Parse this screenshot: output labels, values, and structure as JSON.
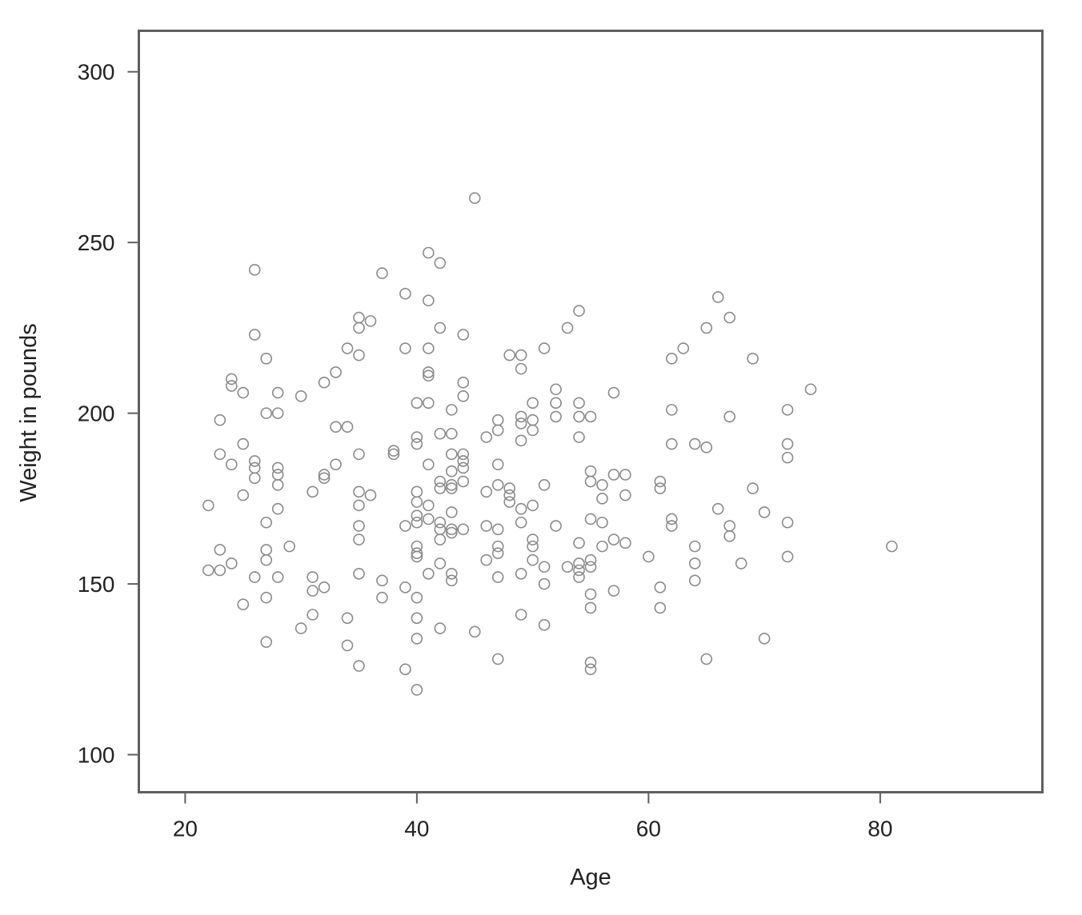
{
  "chart_data": {
    "type": "scatter",
    "xlabel": "Age",
    "ylabel": "Weight in pounds",
    "xlim": [
      16,
      94
    ],
    "ylim": [
      89,
      312
    ],
    "xticks": [
      20,
      40,
      60,
      80
    ],
    "yticks": [
      100,
      150,
      200,
      250,
      300
    ],
    "grid": false,
    "marker": "open-circle",
    "colors": {
      "marker": "#8a8a8a",
      "frame": "#5f5f62",
      "text": "#222222"
    },
    "points": [
      [
        22,
        173
      ],
      [
        22,
        154
      ],
      [
        23,
        198
      ],
      [
        23,
        188
      ],
      [
        23,
        160
      ],
      [
        23,
        154
      ],
      [
        24,
        210
      ],
      [
        24,
        208
      ],
      [
        24,
        185
      ],
      [
        24,
        156
      ],
      [
        25,
        206
      ],
      [
        25,
        191
      ],
      [
        25,
        176
      ],
      [
        25,
        144
      ],
      [
        26,
        242
      ],
      [
        26,
        223
      ],
      [
        26,
        186
      ],
      [
        26,
        184
      ],
      [
        26,
        181
      ],
      [
        26,
        152
      ],
      [
        27,
        216
      ],
      [
        27,
        200
      ],
      [
        27,
        168
      ],
      [
        27,
        160
      ],
      [
        27,
        157
      ],
      [
        27,
        146
      ],
      [
        27,
        133
      ],
      [
        28,
        206
      ],
      [
        28,
        200
      ],
      [
        28,
        184
      ],
      [
        28,
        182
      ],
      [
        28,
        179
      ],
      [
        28,
        172
      ],
      [
        28,
        152
      ],
      [
        29,
        161
      ],
      [
        30,
        205
      ],
      [
        30,
        137
      ],
      [
        31,
        177
      ],
      [
        31,
        152
      ],
      [
        31,
        148
      ],
      [
        31,
        141
      ],
      [
        32,
        209
      ],
      [
        32,
        182
      ],
      [
        32,
        181
      ],
      [
        32,
        149
      ],
      [
        33,
        212
      ],
      [
        33,
        196
      ],
      [
        33,
        185
      ],
      [
        34,
        219
      ],
      [
        34,
        196
      ],
      [
        34,
        140
      ],
      [
        34,
        132
      ],
      [
        35,
        228
      ],
      [
        35,
        225
      ],
      [
        35,
        217
      ],
      [
        35,
        188
      ],
      [
        35,
        177
      ],
      [
        35,
        173
      ],
      [
        35,
        167
      ],
      [
        35,
        163
      ],
      [
        35,
        153
      ],
      [
        35,
        126
      ],
      [
        36,
        227
      ],
      [
        36,
        176
      ],
      [
        37,
        241
      ],
      [
        37,
        151
      ],
      [
        37,
        146
      ],
      [
        38,
        189
      ],
      [
        38,
        188
      ],
      [
        39,
        235
      ],
      [
        39,
        219
      ],
      [
        39,
        167
      ],
      [
        39,
        149
      ],
      [
        39,
        125
      ],
      [
        40,
        203
      ],
      [
        40,
        193
      ],
      [
        40,
        191
      ],
      [
        40,
        177
      ],
      [
        40,
        174
      ],
      [
        40,
        170
      ],
      [
        40,
        168
      ],
      [
        40,
        161
      ],
      [
        40,
        159
      ],
      [
        40,
        158
      ],
      [
        40,
        146
      ],
      [
        40,
        140
      ],
      [
        40,
        134
      ],
      [
        40,
        119
      ],
      [
        41,
        247
      ],
      [
        41,
        233
      ],
      [
        41,
        219
      ],
      [
        41,
        212
      ],
      [
        41,
        211
      ],
      [
        41,
        203
      ],
      [
        41,
        185
      ],
      [
        41,
        173
      ],
      [
        41,
        169
      ],
      [
        41,
        153
      ],
      [
        42,
        244
      ],
      [
        42,
        225
      ],
      [
        42,
        194
      ],
      [
        42,
        180
      ],
      [
        42,
        178
      ],
      [
        42,
        168
      ],
      [
        42,
        166
      ],
      [
        42,
        163
      ],
      [
        42,
        156
      ],
      [
        42,
        137
      ],
      [
        43,
        201
      ],
      [
        43,
        194
      ],
      [
        43,
        188
      ],
      [
        43,
        183
      ],
      [
        43,
        179
      ],
      [
        43,
        178
      ],
      [
        43,
        171
      ],
      [
        43,
        166
      ],
      [
        43,
        165
      ],
      [
        43,
        153
      ],
      [
        43,
        151
      ],
      [
        44,
        223
      ],
      [
        44,
        209
      ],
      [
        44,
        205
      ],
      [
        44,
        188
      ],
      [
        44,
        186
      ],
      [
        44,
        184
      ],
      [
        44,
        180
      ],
      [
        44,
        166
      ],
      [
        45,
        263
      ],
      [
        45,
        136
      ],
      [
        46,
        193
      ],
      [
        46,
        177
      ],
      [
        46,
        167
      ],
      [
        46,
        157
      ],
      [
        47,
        198
      ],
      [
        47,
        195
      ],
      [
        47,
        185
      ],
      [
        47,
        179
      ],
      [
        47,
        166
      ],
      [
        47,
        161
      ],
      [
        47,
        159
      ],
      [
        47,
        152
      ],
      [
        47,
        128
      ],
      [
        48,
        217
      ],
      [
        48,
        178
      ],
      [
        48,
        176
      ],
      [
        48,
        174
      ],
      [
        49,
        217
      ],
      [
        49,
        213
      ],
      [
        49,
        199
      ],
      [
        49,
        197
      ],
      [
        49,
        192
      ],
      [
        49,
        172
      ],
      [
        49,
        168
      ],
      [
        49,
        153
      ],
      [
        49,
        141
      ],
      [
        50,
        203
      ],
      [
        50,
        198
      ],
      [
        50,
        195
      ],
      [
        50,
        173
      ],
      [
        50,
        163
      ],
      [
        50,
        161
      ],
      [
        50,
        157
      ],
      [
        51,
        219
      ],
      [
        51,
        179
      ],
      [
        51,
        155
      ],
      [
        51,
        150
      ],
      [
        51,
        138
      ],
      [
        52,
        207
      ],
      [
        52,
        203
      ],
      [
        52,
        199
      ],
      [
        52,
        167
      ],
      [
        53,
        225
      ],
      [
        53,
        155
      ],
      [
        54,
        230
      ],
      [
        54,
        203
      ],
      [
        54,
        199
      ],
      [
        54,
        193
      ],
      [
        54,
        162
      ],
      [
        54,
        156
      ],
      [
        54,
        154
      ],
      [
        54,
        152
      ],
      [
        55,
        199
      ],
      [
        55,
        183
      ],
      [
        55,
        180
      ],
      [
        55,
        169
      ],
      [
        55,
        157
      ],
      [
        55,
        155
      ],
      [
        55,
        147
      ],
      [
        55,
        143
      ],
      [
        55,
        127
      ],
      [
        55,
        125
      ],
      [
        56,
        179
      ],
      [
        56,
        175
      ],
      [
        56,
        168
      ],
      [
        56,
        161
      ],
      [
        57,
        206
      ],
      [
        57,
        182
      ],
      [
        57,
        163
      ],
      [
        57,
        148
      ],
      [
        58,
        182
      ],
      [
        58,
        176
      ],
      [
        58,
        162
      ],
      [
        60,
        158
      ],
      [
        61,
        180
      ],
      [
        61,
        178
      ],
      [
        61,
        149
      ],
      [
        61,
        143
      ],
      [
        62,
        216
      ],
      [
        62,
        201
      ],
      [
        62,
        191
      ],
      [
        62,
        169
      ],
      [
        62,
        167
      ],
      [
        63,
        219
      ],
      [
        64,
        191
      ],
      [
        64,
        161
      ],
      [
        64,
        156
      ],
      [
        64,
        151
      ],
      [
        65,
        225
      ],
      [
        65,
        190
      ],
      [
        65,
        128
      ],
      [
        66,
        234
      ],
      [
        66,
        172
      ],
      [
        67,
        228
      ],
      [
        67,
        199
      ],
      [
        67,
        167
      ],
      [
        67,
        164
      ],
      [
        68,
        156
      ],
      [
        69,
        216
      ],
      [
        69,
        178
      ],
      [
        70,
        171
      ],
      [
        70,
        134
      ],
      [
        72,
        201
      ],
      [
        72,
        191
      ],
      [
        72,
        187
      ],
      [
        72,
        168
      ],
      [
        72,
        158
      ],
      [
        74,
        207
      ],
      [
        81,
        161
      ]
    ]
  }
}
